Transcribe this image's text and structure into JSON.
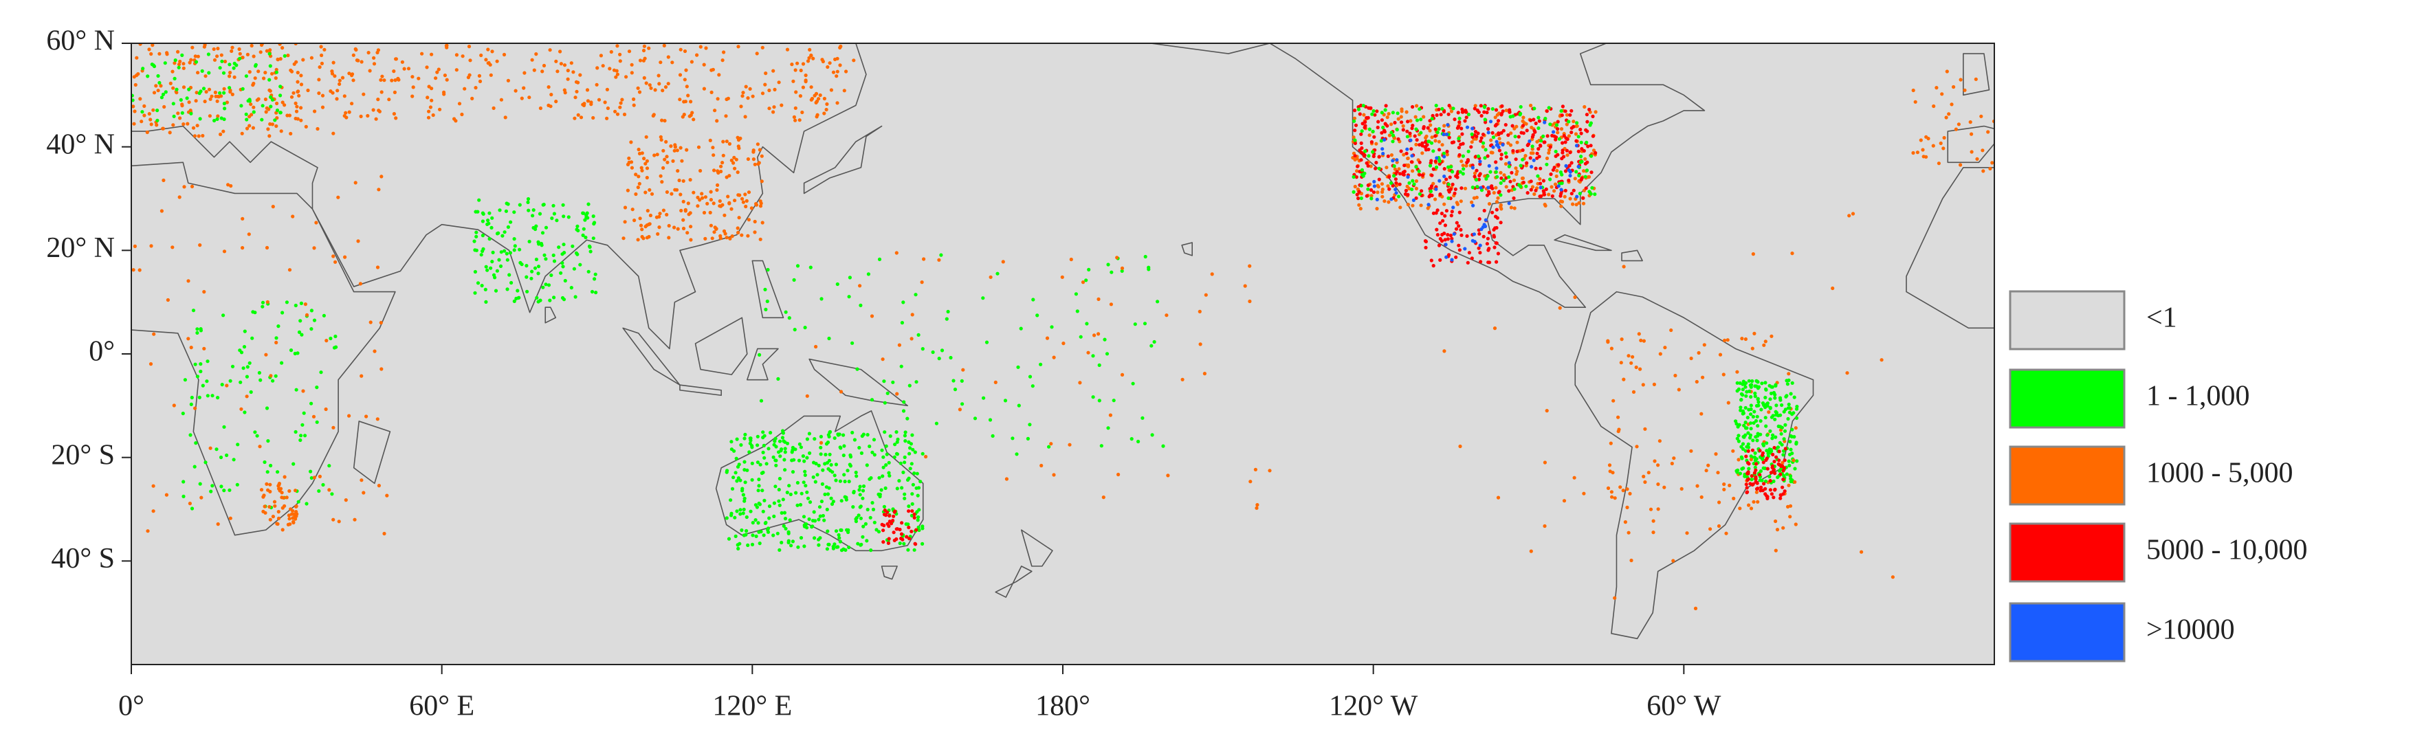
{
  "map": {
    "lat_range": [
      -60,
      60
    ],
    "lon_range": [
      0,
      360
    ],
    "lat_ticks": [
      {
        "value": 60,
        "label": "60° N"
      },
      {
        "value": 40,
        "label": "40° N"
      },
      {
        "value": 20,
        "label": "20° N"
      },
      {
        "value": 0,
        "label": "0°"
      },
      {
        "value": -20,
        "label": "20° S"
      },
      {
        "value": -40,
        "label": "40° S"
      }
    ],
    "lon_ticks": [
      {
        "value": 0,
        "label": "0°"
      },
      {
        "value": 60,
        "label": "60° E"
      },
      {
        "value": 120,
        "label": "120° E"
      },
      {
        "value": 180,
        "label": "180°"
      },
      {
        "value": 240,
        "label": "120° W"
      },
      {
        "value": 300,
        "label": "60° W"
      }
    ]
  },
  "legend": [
    {
      "label": "<1",
      "color": "#dcdcdc"
    },
    {
      "label": "1 - 1,000",
      "color": "#00ff00"
    },
    {
      "label": "1000 - 5,000",
      "color": "#ff6a00"
    },
    {
      "label": "5000 - 10,000",
      "color": "#ff0000"
    },
    {
      "label": ">10000",
      "color": "#1a5cff"
    }
  ]
}
